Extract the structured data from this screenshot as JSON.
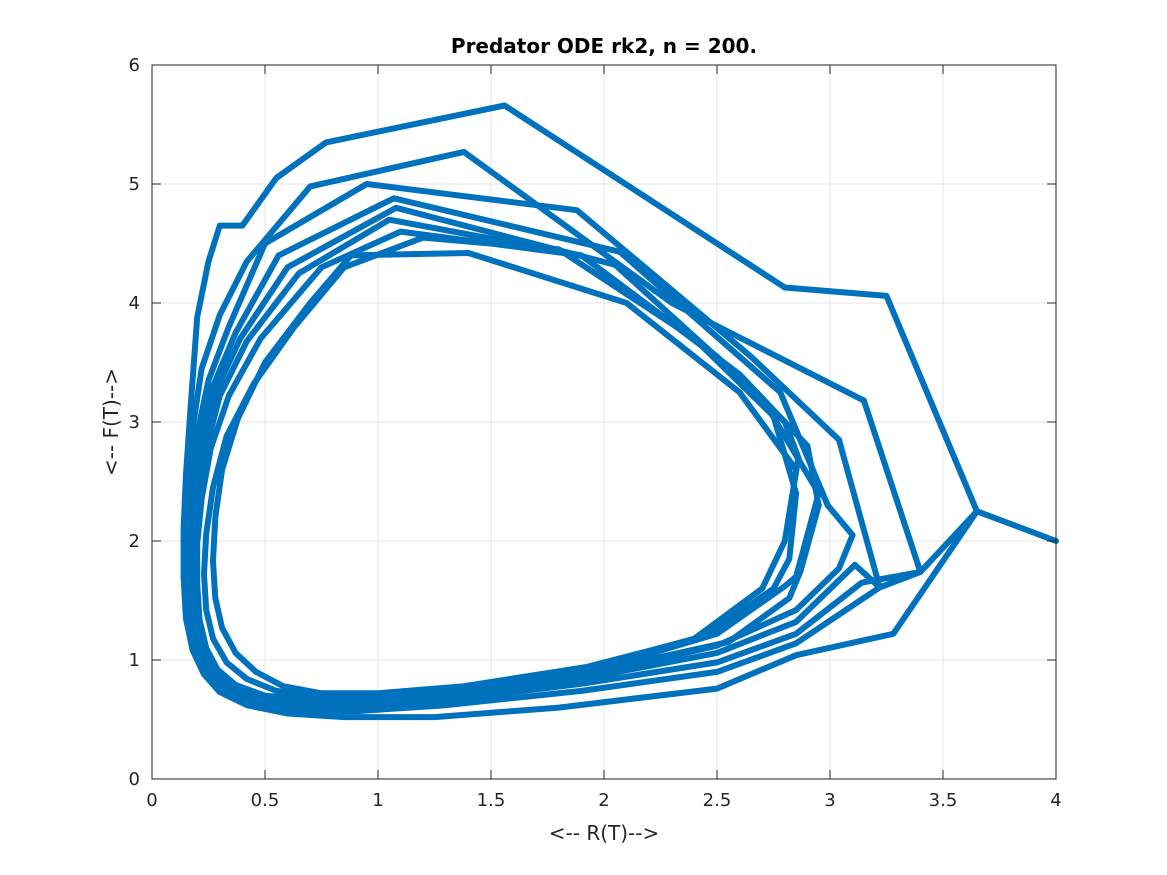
{
  "chart_data": {
    "type": "line",
    "title": "Predator ODE rk2, n = 200.",
    "xlabel": "<-- R(T)-->",
    "ylabel": "<-- F(T)-->",
    "xlim": [
      0,
      4
    ],
    "ylim": [
      0,
      6
    ],
    "xticks": [
      0,
      0.5,
      1,
      1.5,
      2,
      2.5,
      3,
      3.5,
      4
    ],
    "xtick_labels": [
      "0",
      "0.5",
      "1",
      "1.5",
      "2",
      "2.5",
      "3",
      "3.5",
      "4"
    ],
    "yticks": [
      0,
      1,
      2,
      3,
      4,
      5,
      6
    ],
    "ytick_labels": [
      "0",
      "1",
      "2",
      "3",
      "4",
      "5",
      "6"
    ],
    "grid": true,
    "line_color": "#0072BD",
    "series": [
      {
        "x": [
          4.0,
          3.65,
          3.28,
          2.85,
          2.5,
          1.8,
          1.25,
          0.85,
          0.6,
          0.42,
          0.3,
          0.23,
          0.18,
          0.15,
          0.14,
          0.14,
          0.15,
          0.17,
          0.2,
          0.25,
          0.3,
          0.4,
          0.55,
          0.77,
          1.56,
          2.8,
          3.25,
          3.65
        ],
        "y": [
          2.0,
          2.25,
          1.22,
          1.04,
          0.76,
          0.6,
          0.52,
          0.52,
          0.55,
          0.62,
          0.73,
          0.88,
          1.08,
          1.35,
          1.7,
          2.1,
          2.55,
          3.1,
          3.88,
          4.35,
          4.65,
          4.65,
          5.05,
          5.35,
          5.66,
          4.13,
          4.06,
          2.25
        ]
      },
      {
        "x": [
          3.65,
          3.4,
          3.22,
          2.85,
          2.5,
          1.9,
          1.3,
          0.9,
          0.65,
          0.45,
          0.33,
          0.24,
          0.19,
          0.16,
          0.15,
          0.15,
          0.16,
          0.18,
          0.22,
          0.3,
          0.42,
          0.7,
          1.38,
          2.3,
          3.15
        ],
        "y": [
          2.25,
          1.74,
          1.61,
          1.14,
          0.9,
          0.74,
          0.62,
          0.57,
          0.58,
          0.65,
          0.75,
          0.9,
          1.1,
          1.38,
          1.72,
          2.1,
          2.52,
          2.95,
          3.45,
          3.9,
          4.35,
          4.98,
          5.27,
          4.0,
          3.18
        ]
      },
      {
        "x": [
          3.15,
          3.4,
          3.14,
          2.85,
          2.5,
          1.9,
          1.3,
          0.92,
          0.65,
          0.46,
          0.34,
          0.25,
          0.2,
          0.17,
          0.16,
          0.16,
          0.17,
          0.2,
          0.25,
          0.34,
          0.5,
          0.95,
          1.88,
          2.65,
          3.04
        ],
        "y": [
          3.18,
          1.74,
          1.65,
          1.22,
          0.98,
          0.8,
          0.66,
          0.6,
          0.61,
          0.66,
          0.77,
          0.92,
          1.12,
          1.38,
          1.72,
          2.1,
          2.5,
          2.9,
          3.35,
          3.8,
          4.5,
          5.0,
          4.78,
          3.55,
          2.85
        ]
      },
      {
        "x": [
          3.04,
          3.22,
          3.11,
          2.85,
          2.5,
          1.9,
          1.3,
          0.92,
          0.65,
          0.46,
          0.34,
          0.26,
          0.21,
          0.18,
          0.17,
          0.17,
          0.18,
          0.21,
          0.27,
          0.37,
          0.56,
          1.07,
          2.07,
          2.78,
          2.99
        ],
        "y": [
          2.85,
          1.61,
          1.8,
          1.32,
          1.06,
          0.84,
          0.68,
          0.62,
          0.62,
          0.67,
          0.78,
          0.92,
          1.1,
          1.35,
          1.68,
          2.05,
          2.45,
          2.85,
          3.3,
          3.75,
          4.4,
          4.88,
          4.43,
          3.25,
          2.3
        ]
      },
      {
        "x": [
          2.99,
          3.1,
          3.04,
          2.85,
          2.5,
          1.9,
          1.3,
          0.92,
          0.66,
          0.47,
          0.35,
          0.27,
          0.22,
          0.19,
          0.18,
          0.18,
          0.19,
          0.22,
          0.28,
          0.39,
          0.6,
          1.08,
          2.05,
          2.7,
          2.95
        ],
        "y": [
          2.3,
          2.05,
          1.77,
          1.42,
          1.12,
          0.86,
          0.7,
          0.64,
          0.63,
          0.68,
          0.78,
          0.92,
          1.1,
          1.34,
          1.66,
          2.02,
          2.4,
          2.8,
          3.25,
          3.7,
          4.3,
          4.8,
          4.32,
          3.2,
          2.4
        ]
      },
      {
        "x": [
          2.95,
          2.85,
          2.8,
          2.5,
          1.9,
          1.3,
          0.92,
          0.66,
          0.48,
          0.36,
          0.28,
          0.23,
          0.2,
          0.19,
          0.19,
          0.2,
          0.24,
          0.3,
          0.42,
          0.65,
          1.05,
          1.9,
          2.6,
          2.9,
          2.95
        ],
        "y": [
          2.4,
          1.7,
          1.62,
          1.22,
          0.88,
          0.72,
          0.66,
          0.65,
          0.69,
          0.78,
          0.92,
          1.1,
          1.34,
          1.65,
          2.0,
          2.38,
          2.78,
          3.22,
          3.68,
          4.25,
          4.7,
          4.4,
          3.4,
          2.8,
          2.3
        ]
      },
      {
        "x": [
          2.95,
          2.87,
          2.82,
          2.55,
          1.95,
          1.35,
          0.95,
          0.68,
          0.5,
          0.37,
          0.29,
          0.24,
          0.21,
          0.2,
          0.2,
          0.22,
          0.26,
          0.34,
          0.48,
          0.75,
          1.1,
          1.9,
          2.5,
          2.8,
          2.86
        ],
        "y": [
          2.3,
          1.75,
          1.52,
          1.15,
          0.9,
          0.74,
          0.68,
          0.67,
          0.7,
          0.79,
          0.92,
          1.1,
          1.34,
          1.64,
          1.98,
          2.36,
          2.78,
          3.22,
          3.7,
          4.3,
          4.6,
          4.4,
          3.55,
          3.0,
          2.7
        ]
      },
      {
        "x": [
          2.86,
          2.8,
          2.7,
          2.4,
          1.9,
          1.35,
          0.98,
          0.72,
          0.55,
          0.42,
          0.33,
          0.27,
          0.24,
          0.23,
          0.24,
          0.27,
          0.33,
          0.45,
          0.63,
          0.85,
          1.2,
          1.8,
          2.4,
          2.75,
          2.85
        ],
        "y": [
          2.7,
          2.0,
          1.6,
          1.18,
          0.92,
          0.76,
          0.7,
          0.7,
          0.74,
          0.84,
          0.98,
          1.18,
          1.42,
          1.72,
          2.06,
          2.45,
          2.88,
          3.32,
          3.8,
          4.3,
          4.55,
          4.45,
          3.7,
          3.05,
          2.4
        ]
      },
      {
        "x": [
          2.85,
          2.82,
          2.75,
          2.45,
          1.92,
          1.38,
          1.0,
          0.75,
          0.58,
          0.46,
          0.37,
          0.31,
          0.28,
          0.27,
          0.28,
          0.31,
          0.38,
          0.5,
          0.7,
          0.88,
          1.4,
          2.1,
          2.6,
          2.85
        ],
        "y": [
          2.4,
          1.85,
          1.6,
          1.2,
          0.94,
          0.78,
          0.72,
          0.72,
          0.78,
          0.9,
          1.06,
          1.27,
          1.52,
          1.83,
          2.2,
          2.6,
          3.03,
          3.5,
          4.0,
          4.4,
          4.42,
          4.0,
          3.25,
          2.6
        ]
      }
    ]
  }
}
